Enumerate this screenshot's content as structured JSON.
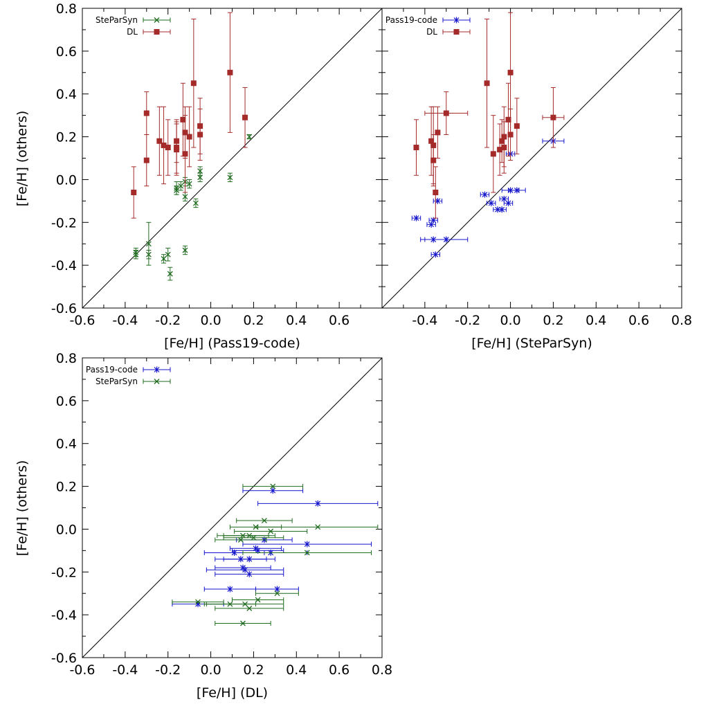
{
  "chart_data": [
    {
      "type": "scatter",
      "xlabel": "[Fe/H] (Pass19-code)",
      "ylabel": "[Fe/H] (others)",
      "xlim": [
        -0.6,
        0.8
      ],
      "ylim": [
        -0.6,
        0.8
      ],
      "xticks": [
        "-0.6",
        "-0.4",
        "-0.2",
        "0.0",
        "0.2",
        "0.4",
        "0.6"
      ],
      "yticks": [
        "-0.6",
        "-0.4",
        "-0.2",
        "0.0",
        "0.2",
        "0.4",
        "0.6",
        "0.8"
      ],
      "legend_position": "top-left",
      "one_to_one_line": true,
      "series": [
        {
          "name": "SteParSyn",
          "color": "#1f6b1f",
          "marker": "x",
          "points": [
            {
              "x": -0.35,
              "y": -0.34,
              "yerr": 0.02
            },
            {
              "x": -0.35,
              "y": -0.35,
              "yerr": 0.02
            },
            {
              "x": -0.29,
              "y": -0.3,
              "yerr": 0.1
            },
            {
              "x": -0.29,
              "y": -0.35,
              "yerr": 0.02
            },
            {
              "x": -0.22,
              "y": -0.37,
              "yerr": 0.02
            },
            {
              "x": -0.2,
              "y": -0.35,
              "yerr": 0.03
            },
            {
              "x": -0.19,
              "y": -0.44,
              "yerr": 0.03
            },
            {
              "x": -0.16,
              "y": -0.04,
              "yerr": 0.03
            },
            {
              "x": -0.16,
              "y": -0.05,
              "yerr": 0.02
            },
            {
              "x": -0.14,
              "y": -0.03,
              "yerr": 0.02
            },
            {
              "x": -0.12,
              "y": -0.01,
              "yerr": 0.02
            },
            {
              "x": -0.12,
              "y": -0.08,
              "yerr": 0.02
            },
            {
              "x": -0.12,
              "y": -0.33,
              "yerr": 0.02
            },
            {
              "x": -0.1,
              "y": -0.02,
              "yerr": 0.02
            },
            {
              "x": -0.07,
              "y": -0.11,
              "yerr": 0.02
            },
            {
              "x": -0.05,
              "y": 0.04,
              "yerr": 0.02
            },
            {
              "x": -0.05,
              "y": 0.01,
              "yerr": 0.02
            },
            {
              "x": 0.09,
              "y": 0.01,
              "yerr": 0.02
            },
            {
              "x": 0.18,
              "y": 0.2,
              "yerr": 0.01
            }
          ]
        },
        {
          "name": "DL",
          "color": "#a52a2a",
          "marker": "square",
          "points": [
            {
              "x": -0.36,
              "y": -0.06,
              "yerr": 0.12
            },
            {
              "x": -0.3,
              "y": 0.31,
              "yerr": 0.1
            },
            {
              "x": -0.3,
              "y": 0.09,
              "yerr": 0.12
            },
            {
              "x": -0.24,
              "y": 0.18,
              "yerr": 0.16
            },
            {
              "x": -0.22,
              "y": 0.16,
              "yerr": 0.18
            },
            {
              "x": -0.2,
              "y": 0.15,
              "yerr": 0.13
            },
            {
              "x": -0.16,
              "y": 0.18,
              "yerr": 0.1
            },
            {
              "x": -0.16,
              "y": 0.15,
              "yerr": 0.12
            },
            {
              "x": -0.16,
              "y": 0.14,
              "yerr": 0.12
            },
            {
              "x": -0.13,
              "y": 0.28,
              "yerr": 0.17
            },
            {
              "x": -0.12,
              "y": 0.22,
              "yerr": 0.12
            },
            {
              "x": -0.12,
              "y": 0.12,
              "yerr": 0.18
            },
            {
              "x": -0.1,
              "y": 0.2,
              "yerr": 0.14
            },
            {
              "x": -0.08,
              "y": 0.45,
              "yerr": 0.3
            },
            {
              "x": -0.05,
              "y": 0.25,
              "yerr": 0.13
            },
            {
              "x": -0.05,
              "y": 0.21,
              "yerr": 0.12
            },
            {
              "x": 0.09,
              "y": 0.5,
              "yerr": 0.28
            },
            {
              "x": 0.16,
              "y": 0.29,
              "yerr": 0.14
            }
          ]
        }
      ]
    },
    {
      "type": "scatter",
      "xlabel": "[Fe/H] (SteParSyn)",
      "ylabel": "",
      "xlim": [
        -0.6,
        0.8
      ],
      "ylim": [
        -0.6,
        0.8
      ],
      "xticks": [
        "-0.4",
        "-0.2",
        "0.0",
        "0.2",
        "0.4",
        "0.6",
        "0.8"
      ],
      "yticks": [],
      "legend_position": "top-left",
      "one_to_one_line": true,
      "series": [
        {
          "name": "Pass19-code",
          "color": "#1414cc",
          "marker": "asterisk",
          "points": [
            {
              "x": -0.44,
              "y": -0.18,
              "xerr": 0.02
            },
            {
              "x": -0.37,
              "y": -0.21,
              "xerr": 0.02
            },
            {
              "x": -0.36,
              "y": -0.19,
              "xerr": 0.02
            },
            {
              "x": -0.36,
              "y": -0.28,
              "xerr": 0.06
            },
            {
              "x": -0.35,
              "y": -0.35,
              "xerr": 0.02
            },
            {
              "x": -0.34,
              "y": -0.1,
              "xerr": 0.02
            },
            {
              "x": -0.3,
              "y": -0.28,
              "xerr": 0.1
            },
            {
              "x": -0.12,
              "y": -0.07,
              "xerr": 0.02
            },
            {
              "x": -0.09,
              "y": -0.11,
              "xerr": 0.02
            },
            {
              "x": -0.06,
              "y": -0.14,
              "xerr": 0.02
            },
            {
              "x": -0.04,
              "y": -0.14,
              "xerr": 0.02
            },
            {
              "x": -0.03,
              "y": -0.09,
              "xerr": 0.02
            },
            {
              "x": -0.01,
              "y": -0.11,
              "xerr": 0.02
            },
            {
              "x": 0.0,
              "y": 0.12,
              "xerr": 0.02
            },
            {
              "x": 0.0,
              "y": -0.05,
              "xerr": 0.04
            },
            {
              "x": 0.03,
              "y": -0.05,
              "xerr": 0.04
            },
            {
              "x": 0.2,
              "y": 0.18,
              "xerr": 0.05
            }
          ]
        },
        {
          "name": "DL",
          "color": "#a52a2a",
          "marker": "square",
          "points": [
            {
              "x": -0.44,
              "y": 0.15,
              "yerr": 0.13
            },
            {
              "x": -0.37,
              "y": 0.18,
              "yerr": 0.16
            },
            {
              "x": -0.36,
              "y": 0.16,
              "yerr": 0.18
            },
            {
              "x": -0.36,
              "y": 0.09,
              "yerr": 0.12
            },
            {
              "x": -0.35,
              "y": -0.06,
              "yerr": 0.12
            },
            {
              "x": -0.34,
              "y": 0.22,
              "yerr": 0.12
            },
            {
              "x": -0.3,
              "y": 0.31,
              "yerr": 0.1,
              "xerr": 0.1
            },
            {
              "x": -0.11,
              "y": 0.45,
              "yerr": 0.3
            },
            {
              "x": -0.08,
              "y": 0.12,
              "yerr": 0.18
            },
            {
              "x": -0.05,
              "y": 0.14,
              "yerr": 0.12
            },
            {
              "x": -0.04,
              "y": 0.18,
              "yerr": 0.1
            },
            {
              "x": -0.03,
              "y": 0.15,
              "yerr": 0.12
            },
            {
              "x": -0.03,
              "y": 0.2,
              "yerr": 0.14
            },
            {
              "x": -0.01,
              "y": 0.28,
              "yerr": 0.17
            },
            {
              "x": 0.0,
              "y": 0.21,
              "yerr": 0.12
            },
            {
              "x": 0.0,
              "y": 0.5,
              "yerr": 0.28
            },
            {
              "x": 0.03,
              "y": 0.25,
              "yerr": 0.13
            },
            {
              "x": 0.2,
              "y": 0.29,
              "yerr": 0.14,
              "xerr": 0.05
            }
          ]
        }
      ]
    },
    {
      "type": "scatter",
      "xlabel": "[Fe/H] (DL)",
      "ylabel": "[Fe/H] (others)",
      "xlim": [
        -0.6,
        0.8
      ],
      "ylim": [
        -0.6,
        0.8
      ],
      "xticks": [
        "-0.6",
        "-0.4",
        "-0.2",
        "0.0",
        "0.2",
        "0.4",
        "0.6",
        "0.8"
      ],
      "yticks": [
        "-0.6",
        "-0.4",
        "-0.2",
        "0.0",
        "0.2",
        "0.4",
        "0.6",
        "0.8"
      ],
      "legend_position": "top-left",
      "one_to_one_line": true,
      "series": [
        {
          "name": "Pass19-code",
          "color": "#1414cc",
          "marker": "asterisk",
          "points": [
            {
              "x": -0.06,
              "y": -0.35,
              "xerr": 0.12
            },
            {
              "x": 0.09,
              "y": -0.28,
              "xerr": 0.12
            },
            {
              "x": 0.11,
              "y": -0.11,
              "xerr": 0.14
            },
            {
              "x": 0.14,
              "y": -0.14,
              "xerr": 0.12
            },
            {
              "x": 0.15,
              "y": -0.18,
              "xerr": 0.13
            },
            {
              "x": 0.16,
              "y": -0.19,
              "xerr": 0.18
            },
            {
              "x": 0.18,
              "y": -0.14,
              "xerr": 0.12
            },
            {
              "x": 0.18,
              "y": -0.21,
              "xerr": 0.16
            },
            {
              "x": 0.21,
              "y": -0.09,
              "xerr": 0.12
            },
            {
              "x": 0.22,
              "y": -0.1,
              "xerr": 0.12
            },
            {
              "x": 0.25,
              "y": -0.05,
              "xerr": 0.13
            },
            {
              "x": 0.28,
              "y": -0.11,
              "xerr": 0.17
            },
            {
              "x": 0.29,
              "y": 0.18,
              "xerr": 0.14
            },
            {
              "x": 0.31,
              "y": -0.28,
              "xerr": 0.1
            },
            {
              "x": 0.45,
              "y": -0.07,
              "xerr": 0.3
            },
            {
              "x": 0.5,
              "y": 0.12,
              "xerr": 0.28
            }
          ]
        },
        {
          "name": "SteParSyn",
          "color": "#1f6b1f",
          "marker": "x",
          "points": [
            {
              "x": -0.06,
              "y": -0.34,
              "xerr": 0.12
            },
            {
              "x": 0.09,
              "y": -0.35,
              "xerr": 0.12
            },
            {
              "x": 0.14,
              "y": -0.05,
              "xerr": 0.12
            },
            {
              "x": 0.15,
              "y": -0.03,
              "xerr": 0.12
            },
            {
              "x": 0.15,
              "y": -0.44,
              "xerr": 0.13
            },
            {
              "x": 0.16,
              "y": -0.35,
              "xerr": 0.18
            },
            {
              "x": 0.18,
              "y": -0.03,
              "xerr": 0.12
            },
            {
              "x": 0.18,
              "y": -0.37,
              "xerr": 0.16
            },
            {
              "x": 0.2,
              "y": -0.04,
              "xerr": 0.14
            },
            {
              "x": 0.21,
              "y": 0.01,
              "xerr": 0.12
            },
            {
              "x": 0.22,
              "y": -0.33,
              "xerr": 0.12
            },
            {
              "x": 0.25,
              "y": 0.04,
              "xerr": 0.13
            },
            {
              "x": 0.28,
              "y": -0.01,
              "xerr": 0.17
            },
            {
              "x": 0.29,
              "y": 0.2,
              "xerr": 0.14
            },
            {
              "x": 0.31,
              "y": -0.3,
              "xerr": 0.1
            },
            {
              "x": 0.45,
              "y": -0.11,
              "xerr": 0.3
            },
            {
              "x": 0.5,
              "y": 0.01,
              "xerr": 0.28
            }
          ]
        }
      ]
    }
  ]
}
